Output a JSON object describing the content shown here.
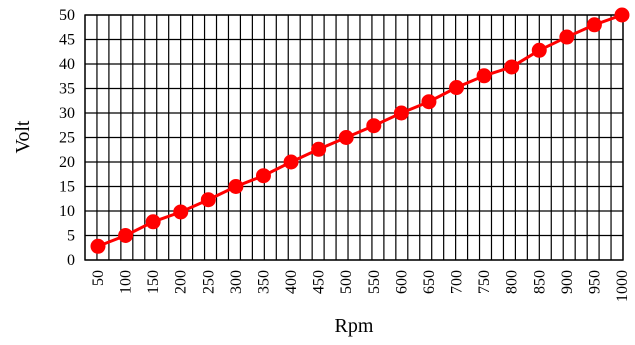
{
  "colors": {
    "series": "#ff0000",
    "grid": "#000000",
    "background": "#ffffff"
  },
  "chart_data": {
    "type": "line",
    "title": "",
    "xlabel": "Rpm",
    "ylabel": "Volt",
    "grid": true,
    "legend": "none",
    "ylim": [
      0,
      50
    ],
    "yticks": [
      0,
      5,
      10,
      15,
      20,
      25,
      30,
      35,
      40,
      45,
      50
    ],
    "x": [
      50,
      100,
      150,
      200,
      250,
      300,
      350,
      400,
      450,
      500,
      550,
      600,
      650,
      700,
      750,
      800,
      850,
      900,
      950,
      1000
    ],
    "series": [
      {
        "values": [
          2.8,
          5.0,
          7.8,
          9.8,
          12.3,
          15.0,
          17.2,
          20.0,
          22.6,
          25.0,
          27.4,
          30.0,
          32.3,
          35.2,
          37.6,
          39.4,
          42.8,
          45.5,
          48.0,
          50.0
        ]
      }
    ]
  }
}
